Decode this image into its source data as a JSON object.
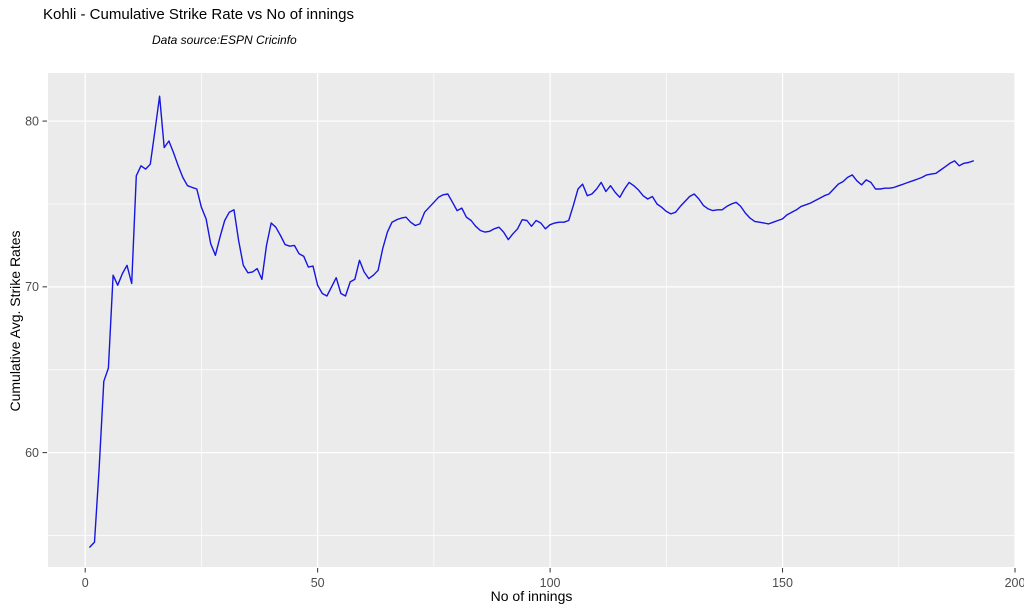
{
  "chart": {
    "title": "Kohli - Cumulative Strike Rate vs No of innings",
    "subtitle": "Data source:ESPN Cricinfo",
    "xlabel": "No of innings",
    "ylabel": "Cumulative Avg. Strike Rates"
  },
  "chart_data": {
    "type": "line",
    "title": "Kohli - Cumulative Strike Rate vs No of innings",
    "subtitle": "Data source:ESPN Cricinfo",
    "xlabel": "No of innings",
    "ylabel": "Cumulative Avg. Strike Rates",
    "legend": "none",
    "grid": "on",
    "xlim": [
      -8,
      200
    ],
    "ylim": [
      53.1,
      82.9
    ],
    "x_major_ticks": [
      0,
      50,
      100,
      150,
      200
    ],
    "x_minor_ticks": [
      25,
      75,
      125,
      175
    ],
    "y_major_ticks": [
      60,
      70,
      80
    ],
    "y_minor_ticks": [
      55,
      65,
      75
    ],
    "colors": {
      "line": "#1616E0",
      "panel_bg": "#EBEBEB",
      "grid_major": "#FFFFFF",
      "grid_minor": "#FFFFFF",
      "tick_label": "#4D4D4D",
      "tick_mark": "#333333",
      "title": "#000000"
    },
    "series": [
      {
        "name": "Cumulative Avg. Strike Rate",
        "x_start": 1,
        "x_step": 1,
        "values": [
          54.3,
          54.6,
          59.0,
          64.3,
          65.1,
          70.7,
          70.1,
          70.8,
          71.3,
          70.2,
          76.7,
          77.3,
          77.1,
          77.4,
          79.4,
          81.5,
          78.4,
          78.8,
          78.1,
          77.3,
          76.6,
          76.1,
          76.0,
          75.9,
          74.8,
          74.1,
          72.6,
          71.9,
          73.0,
          74.0,
          74.5,
          74.65,
          72.8,
          71.3,
          70.85,
          70.9,
          71.1,
          70.45,
          72.5,
          73.85,
          73.6,
          73.1,
          72.55,
          72.45,
          72.5,
          72.0,
          71.85,
          71.2,
          71.25,
          70.1,
          69.6,
          69.45,
          70.0,
          70.55,
          69.6,
          69.45,
          70.3,
          70.45,
          71.6,
          70.9,
          70.5,
          70.7,
          71.0,
          72.3,
          73.3,
          73.9,
          74.05,
          74.15,
          74.2,
          73.9,
          73.7,
          73.8,
          74.5,
          74.8,
          75.1,
          75.4,
          75.55,
          75.6,
          75.1,
          74.6,
          74.75,
          74.2,
          74.0,
          73.65,
          73.4,
          73.3,
          73.35,
          73.5,
          73.6,
          73.3,
          72.85,
          73.2,
          73.5,
          74.05,
          74.0,
          73.65,
          74.0,
          73.85,
          73.5,
          73.75,
          73.85,
          73.9,
          73.9,
          74.0,
          74.9,
          75.9,
          76.2,
          75.5,
          75.6,
          75.9,
          76.3,
          75.75,
          76.1,
          75.7,
          75.4,
          75.9,
          76.3,
          76.1,
          75.85,
          75.5,
          75.3,
          75.45,
          75.0,
          74.8,
          74.55,
          74.4,
          74.5,
          74.85,
          75.15,
          75.45,
          75.6,
          75.3,
          74.9,
          74.7,
          74.6,
          74.65,
          74.65,
          74.85,
          75.0,
          75.1,
          74.85,
          74.45,
          74.15,
          73.95,
          73.9,
          73.85,
          73.8,
          73.9,
          74.0,
          74.1,
          74.35,
          74.5,
          74.65,
          74.85,
          74.95,
          75.05,
          75.2,
          75.35,
          75.5,
          75.6,
          75.9,
          76.2,
          76.35,
          76.6,
          76.75,
          76.4,
          76.15,
          76.45,
          76.3,
          75.9,
          75.9,
          75.95,
          75.95,
          76.0,
          76.1,
          76.2,
          76.3,
          76.4,
          76.5,
          76.6,
          76.75,
          76.8,
          76.85,
          77.05,
          77.25,
          77.45,
          77.6,
          77.3,
          77.45,
          77.5,
          77.6
        ]
      }
    ]
  }
}
